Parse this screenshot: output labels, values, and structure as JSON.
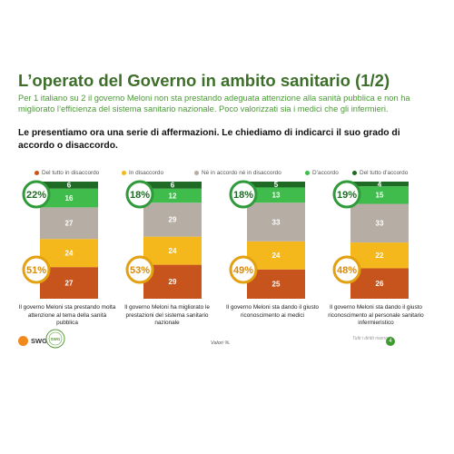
{
  "header": {
    "title": "L’operato del Governo in ambito sanitario (1/2)",
    "subtitle": "Per 1 italiano su 2 il governo Meloni non sta prestando adeguata attenzione alla sanità pubblica e non ha migliorato l’efficienza del sistema sanitario nazionale. Poco valorizzati sia i medici che gli infermieri.",
    "question": "Le presentiamo ora una serie di affermazioni. Le chiediamo di indicarci il suo grado di accordo o disaccordo."
  },
  "colors": {
    "title": "#3d6f2a",
    "subtitle": "#4a9a35",
    "agree_circle": "#2f9a3a",
    "disagree_circle": "#e3a010"
  },
  "chart_data": {
    "type": "bar",
    "stacked": true,
    "orientation": "vertical",
    "categories": [
      "Il governo Meloni sta prestando molta attenzione al tema della sanità pubblica",
      "Il governo Meloni ha migliorato le prestazioni del sistema sanitario nazionale",
      "Il governo Meloni sta dando il giusto riconoscimento ai medici",
      "Il governo Meloni sta dando il giusto riconoscimento al personale sanitario infermieristico"
    ],
    "series": [
      {
        "name": "Del tutto in disaccordo",
        "color": "#c8541d",
        "values": [
          27,
          29,
          25,
          26
        ]
      },
      {
        "name": "In disaccordo",
        "color": "#f4b81c",
        "values": [
          24,
          24,
          24,
          22
        ]
      },
      {
        "name": "Né in accordo né in disaccordo",
        "color": "#b6ada5",
        "values": [
          27,
          29,
          33,
          33
        ]
      },
      {
        "name": "D’accordo",
        "color": "#3fbc4b",
        "values": [
          16,
          12,
          13,
          15
        ]
      },
      {
        "name": "Del tutto d’accordo",
        "color": "#1f6a24",
        "values": [
          6,
          6,
          5,
          4
        ]
      }
    ],
    "agree_totals": [
      "22%",
      "18%",
      "18%",
      "19%"
    ],
    "disagree_totals": [
      "51%",
      "53%",
      "49%",
      "48%"
    ],
    "legend_position": "top",
    "grid": false
  },
  "footer": {
    "note": "Valori %.",
    "rights": "Tutti i diritti riservati",
    "page": "4",
    "logo_text": "SWG",
    "seal_text": "SWG"
  }
}
